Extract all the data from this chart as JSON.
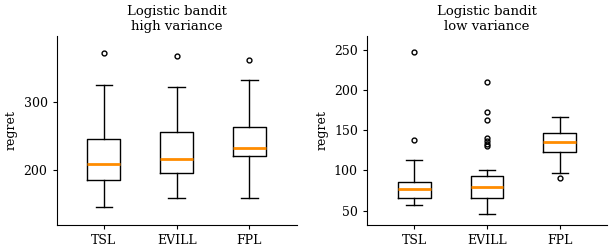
{
  "left_title": "Logistic bandit\nhigh variance",
  "right_title": "Logistic bandit\nlow variance",
  "categories": [
    "TSL",
    "EVILL",
    "FPL"
  ],
  "ylabel": "regret",
  "left": {
    "TSL": {
      "whislo": 145,
      "q1": 185,
      "med": 208,
      "q3": 245,
      "whishi": 325,
      "fliers": [
        372
      ]
    },
    "EVILL": {
      "whislo": 158,
      "q1": 195,
      "med": 215,
      "q3": 255,
      "whishi": 322,
      "fliers": [
        368
      ]
    },
    "FPL": {
      "whislo": 158,
      "q1": 220,
      "med": 232,
      "q3": 263,
      "whishi": 332,
      "fliers": [
        362
      ]
    }
  },
  "right": {
    "TSL": {
      "whislo": 57,
      "q1": 65,
      "med": 77,
      "q3": 86,
      "whishi": 113,
      "fliers": [
        138,
        248
      ]
    },
    "EVILL": {
      "whislo": 46,
      "q1": 65,
      "med": 79,
      "q3": 93,
      "whishi": 101,
      "fliers": [
        130,
        133,
        137,
        140,
        163,
        173,
        210
      ]
    },
    "FPL": {
      "whislo": 97,
      "q1": 123,
      "med": 135,
      "q3": 147,
      "whishi": 167,
      "fliers": [
        90
      ]
    }
  },
  "median_color": "#ff8c00",
  "box_color": "#000000",
  "flier_marker": "o",
  "flier_size": 3.5,
  "left_ylim": [
    118,
    398
  ],
  "left_yticks": [
    200,
    300
  ],
  "right_ylim": [
    32,
    268
  ],
  "right_yticks": [
    50,
    100,
    150,
    200,
    250
  ],
  "figsize": [
    6.12,
    2.52
  ],
  "dpi": 100
}
